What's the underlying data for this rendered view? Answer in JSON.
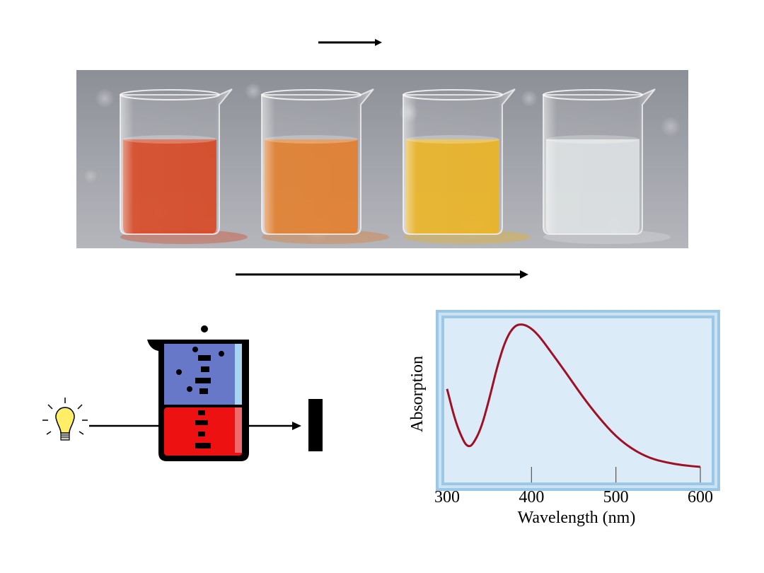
{
  "colors": {
    "arrow": "#000000",
    "beaker_top_liquid": "#6878c8",
    "beaker_bottom_liquid": "#ee1111",
    "beaker_outline": "#000000",
    "bulb": "#ffee66",
    "plot_frame": "#9cc8e6",
    "plot_background": "#dcebf8",
    "curve": "#a01025"
  },
  "icons": [
    "light-bulb-icon",
    "beaker-icon",
    "detector-icon"
  ],
  "photo": {
    "beakers": [
      {
        "liquid_color": "#d43a12"
      },
      {
        "liquid_color": "#e0741c"
      },
      {
        "liquid_color": "#e9ae12"
      },
      {
        "liquid_color": "#d9dde0"
      }
    ]
  },
  "chart_data": {
    "type": "line",
    "title": "",
    "xlabel": "Wavelength (nm)",
    "ylabel": "Absorption",
    "xlim": [
      300,
      600
    ],
    "xticks": [
      300,
      400,
      500,
      600
    ],
    "x_tick_labels": [
      "300",
      "400",
      "500",
      "600"
    ],
    "series": [
      {
        "x": [
          300,
          310,
          320,
          325,
          330,
          340,
          350,
          360,
          370,
          380,
          390,
          400,
          410,
          420,
          440,
          460,
          480,
          500,
          520,
          540,
          560,
          580,
          600
        ],
        "y": [
          0.55,
          0.32,
          0.18,
          0.15,
          0.16,
          0.27,
          0.48,
          0.72,
          0.9,
          0.99,
          1.0,
          0.97,
          0.91,
          0.83,
          0.67,
          0.5,
          0.35,
          0.22,
          0.13,
          0.07,
          0.04,
          0.02,
          0.01
        ]
      }
    ]
  }
}
